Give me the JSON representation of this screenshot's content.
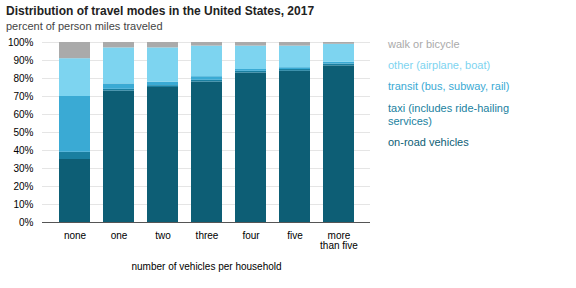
{
  "chart_data": {
    "type": "bar",
    "title": "Distribution of travel modes in the United States, 2017",
    "subtitle": "percent of person miles traveled",
    "xlabel": "number of vehicles per household",
    "categories": [
      "none",
      "one",
      "two",
      "three",
      "four",
      "five",
      "more\nthan five"
    ],
    "stacked": true,
    "series": [
      {
        "name": "on-road vehicles",
        "color": "#0d5e75",
        "values": [
          35,
          73,
          75,
          78,
          83,
          84,
          87
        ]
      },
      {
        "name": "taxi (includes ride-hailing\nservices)",
        "color": "#1a7fa0",
        "values": [
          4,
          1,
          1,
          1,
          1,
          1,
          1
        ]
      },
      {
        "name": "transit (bus, subway, rail)",
        "color": "#3aaad4",
        "values": [
          31,
          3,
          2,
          2,
          1,
          1,
          1
        ]
      },
      {
        "name": "other (airplane, boat)",
        "color": "#7dd4f0",
        "values": [
          21,
          20,
          19,
          17,
          13,
          12,
          10
        ]
      },
      {
        "name": "walk or bicycle",
        "color": "#aaaaaa",
        "values": [
          9,
          3,
          3,
          2,
          2,
          2,
          1
        ]
      }
    ],
    "ylim": [
      0,
      100
    ],
    "yticks": [
      {
        "value": 0,
        "label": "0%"
      },
      {
        "value": 10,
        "label": "10%"
      },
      {
        "value": 20,
        "label": "20%"
      },
      {
        "value": 30,
        "label": "30%"
      },
      {
        "value": 40,
        "label": "40%"
      },
      {
        "value": 50,
        "label": "50%"
      },
      {
        "value": 60,
        "label": "60%"
      },
      {
        "value": 70,
        "label": "70%"
      },
      {
        "value": 80,
        "label": "80%"
      },
      {
        "value": 90,
        "label": "90%"
      },
      {
        "value": 100,
        "label": "100%"
      }
    ],
    "grid": true,
    "legend": "right"
  }
}
